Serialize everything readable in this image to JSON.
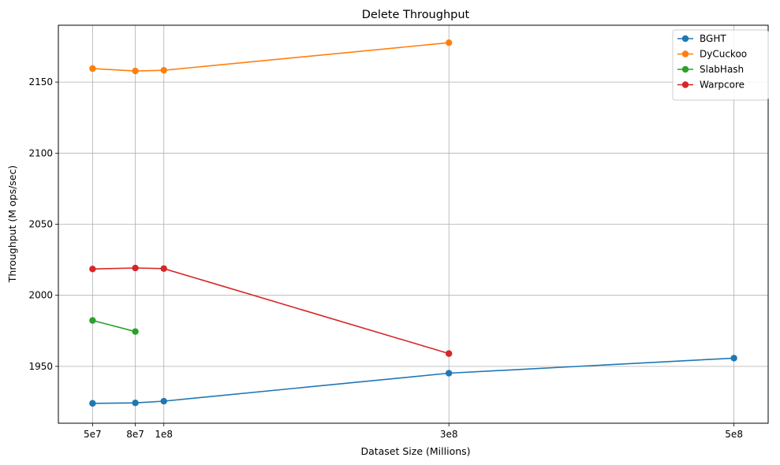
{
  "chart_data": {
    "type": "line",
    "title": "Delete Throughput",
    "xlabel": "Dataset Size (Millions)",
    "ylabel": "Throughput (M ops/sec)",
    "x_ticks": [
      {
        "value": 50000000,
        "label": "5e7"
      },
      {
        "value": 80000000,
        "label": "8e7"
      },
      {
        "value": 100000000,
        "label": "1e8"
      },
      {
        "value": 300000000,
        "label": "3e8"
      },
      {
        "value": 500000000,
        "label": "5e8"
      }
    ],
    "y_ticks": [
      {
        "value": 1950,
        "label": "1950"
      },
      {
        "value": 2000,
        "label": "2000"
      },
      {
        "value": 2050,
        "label": "2050"
      },
      {
        "value": 2100,
        "label": "2100"
      },
      {
        "value": 2150,
        "label": "2150"
      }
    ],
    "xlim": [
      26000000,
      524000000
    ],
    "ylim": [
      1910,
      2190
    ],
    "grid": true,
    "legend_position": "top-right",
    "series": [
      {
        "name": "BGHT",
        "color": "#1f77b4",
        "points": [
          [
            50000000,
            1924
          ],
          [
            80000000,
            1924.3
          ],
          [
            100000000,
            1925.5
          ],
          [
            300000000,
            1945.2
          ],
          [
            500000000,
            1955.8
          ]
        ]
      },
      {
        "name": "DyCuckoo",
        "color": "#ff7f0e",
        "points": [
          [
            50000000,
            2159.5
          ],
          [
            80000000,
            2157.8
          ],
          [
            100000000,
            2158.3
          ],
          [
            300000000,
            2177.7
          ]
        ]
      },
      {
        "name": "SlabHash",
        "color": "#2ca02c",
        "points": [
          [
            50000000,
            1982.3
          ],
          [
            80000000,
            1974.5
          ]
        ]
      },
      {
        "name": "Warpcore",
        "color": "#d62728",
        "points": [
          [
            50000000,
            2018.5
          ],
          [
            80000000,
            2019.2
          ],
          [
            100000000,
            2018.8
          ],
          [
            300000000,
            1959
          ]
        ]
      }
    ]
  }
}
